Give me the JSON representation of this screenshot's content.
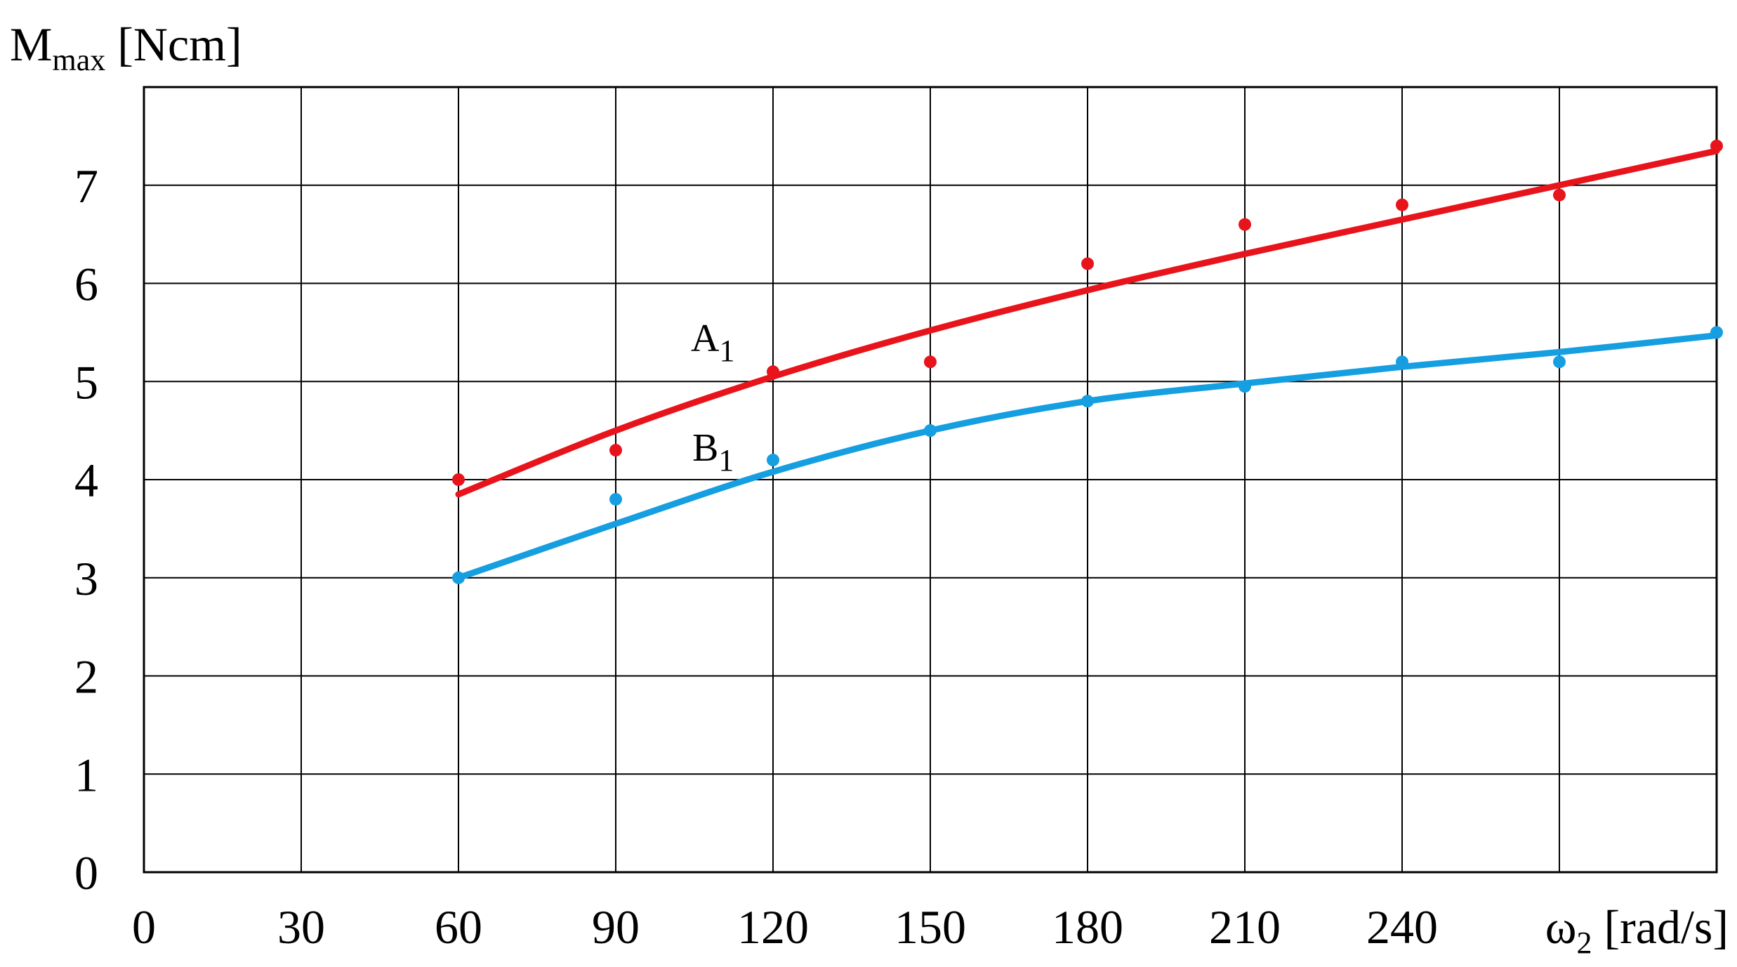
{
  "chart_data": {
    "type": "scatter",
    "ylabel": {
      "main": "M",
      "sub": "max",
      "unit": " [Ncm]"
    },
    "xlabel": {
      "main": "ω",
      "sub": "2",
      "unit": " [rad/s]"
    },
    "x_ticks": [
      "0",
      "30",
      "60",
      "90",
      "120",
      "150",
      "180",
      "210",
      "240"
    ],
    "y_ticks": [
      "0",
      "1",
      "2",
      "3",
      "4",
      "5",
      "6",
      "7"
    ],
    "xlim": [
      0,
      300
    ],
    "ylim": [
      0,
      8
    ],
    "grid": true,
    "series": [
      {
        "name": "A",
        "name_sub": "1",
        "color": "#e8141c",
        "points": [
          [
            60,
            4.0
          ],
          [
            90,
            4.3
          ],
          [
            120,
            5.1
          ],
          [
            150,
            5.2
          ],
          [
            180,
            6.2
          ],
          [
            210,
            6.6
          ],
          [
            240,
            6.8
          ],
          [
            270,
            6.9
          ],
          [
            300,
            7.4
          ]
        ],
        "fit": [
          [
            60,
            3.85
          ],
          [
            90,
            4.5
          ],
          [
            120,
            5.05
          ],
          [
            150,
            5.52
          ],
          [
            180,
            5.93
          ],
          [
            210,
            6.3
          ],
          [
            240,
            6.65
          ],
          [
            270,
            7.0
          ],
          [
            300,
            7.35
          ]
        ]
      },
      {
        "name": "B",
        "name_sub": "1",
        "color": "#159ee0",
        "points": [
          [
            60,
            3.0
          ],
          [
            90,
            3.8
          ],
          [
            120,
            4.2
          ],
          [
            150,
            4.5
          ],
          [
            180,
            4.8
          ],
          [
            210,
            4.95
          ],
          [
            240,
            5.2
          ],
          [
            270,
            5.2
          ],
          [
            300,
            5.5
          ]
        ],
        "fit": [
          [
            60,
            3.0
          ],
          [
            90,
            3.55
          ],
          [
            120,
            4.08
          ],
          [
            150,
            4.5
          ],
          [
            180,
            4.8
          ],
          [
            210,
            4.98
          ],
          [
            240,
            5.15
          ],
          [
            270,
            5.3
          ],
          [
            300,
            5.47
          ]
        ]
      }
    ]
  }
}
